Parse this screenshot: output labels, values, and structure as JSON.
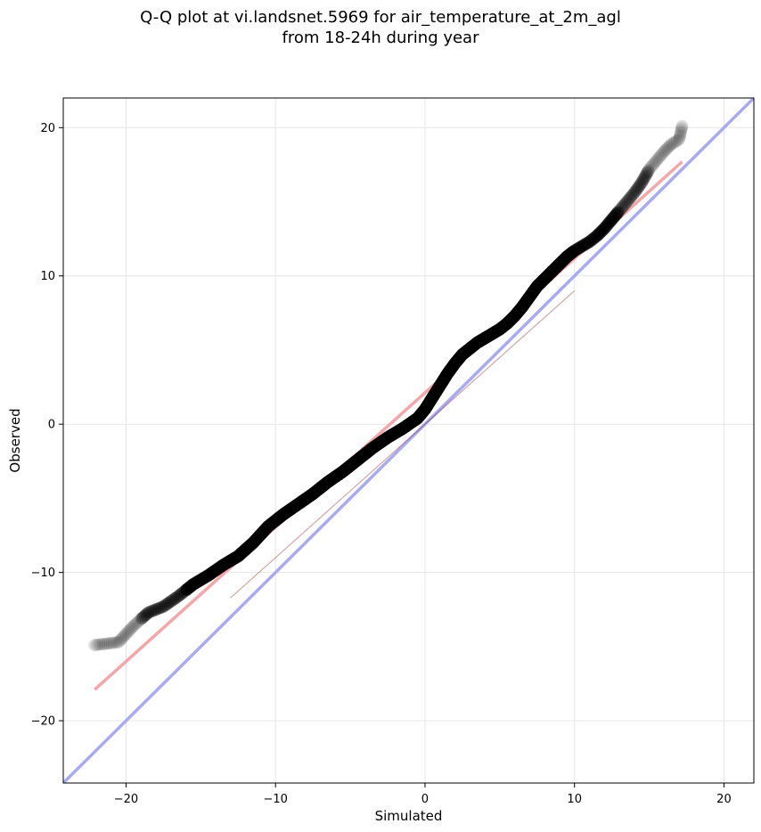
{
  "chart_data": {
    "type": "scatter",
    "title_line1": "Q-Q plot at vi.landsnet.5969 for air_temperature_at_2m_agl",
    "title_line2": "from 18-24h during year",
    "xlabel": "Simulated",
    "ylabel": "Observed",
    "xlim": [
      -24.2,
      22.0
    ],
    "ylim": [
      -24.2,
      22.0
    ],
    "xticks": [
      -20,
      -10,
      0,
      10,
      20
    ],
    "yticks": [
      -20,
      -10,
      0,
      10,
      20
    ],
    "xtick_labels": [
      "−20",
      "−10",
      "0",
      "10",
      "20"
    ],
    "ytick_labels": [
      "−20",
      "−10",
      "0",
      "10",
      "20"
    ],
    "grid": true,
    "colors": {
      "points": "#000000",
      "fit_line": "#f4a6a8",
      "identity_line": "#a9abf2",
      "axes": "#000000",
      "grid": "#e6e6e6"
    },
    "identity_line": {
      "x": [
        -24.2,
        22.0
      ],
      "y": [
        -24.2,
        22.0
      ]
    },
    "fit_line": {
      "x": [
        -22.1,
        17.2
      ],
      "y": [
        -17.9,
        17.7
      ]
    },
    "qq_curve": {
      "x": [
        -22.1,
        -20.5,
        -19.5,
        -18.5,
        -17.5,
        -16.5,
        -15.5,
        -14.5,
        -13.5,
        -12.5,
        -11.5,
        -10.5,
        -9.5,
        -8.5,
        -7.5,
        -6.5,
        -5.5,
        -4.5,
        -3.5,
        -2.5,
        -1.5,
        -0.5,
        0.0,
        0.5,
        1.0,
        1.5,
        2.0,
        2.5,
        3.0,
        3.5,
        4.0,
        4.5,
        5.0,
        5.5,
        6.0,
        6.5,
        7.0,
        7.5,
        8.0,
        8.5,
        9.0,
        9.5,
        10.0,
        10.5,
        11.0,
        11.5,
        12.0,
        12.5,
        13.0,
        13.5,
        14.0,
        14.5,
        15.0,
        15.5,
        16.0,
        16.5,
        17.0,
        17.2
      ],
      "y": [
        -14.9,
        -14.7,
        -13.6,
        -12.7,
        -12.3,
        -11.6,
        -10.8,
        -10.2,
        -9.5,
        -8.9,
        -8.0,
        -6.9,
        -6.1,
        -5.4,
        -4.7,
        -3.9,
        -3.2,
        -2.4,
        -1.6,
        -0.9,
        -0.3,
        0.4,
        1.0,
        1.8,
        2.6,
        3.4,
        4.1,
        4.7,
        5.1,
        5.5,
        5.8,
        6.1,
        6.4,
        6.8,
        7.3,
        7.9,
        8.6,
        9.3,
        9.8,
        10.3,
        10.8,
        11.3,
        11.7,
        12.0,
        12.3,
        12.7,
        13.2,
        13.8,
        14.4,
        15.0,
        15.6,
        16.3,
        17.2,
        17.8,
        18.4,
        18.9,
        19.2,
        20.1
      ]
    }
  }
}
